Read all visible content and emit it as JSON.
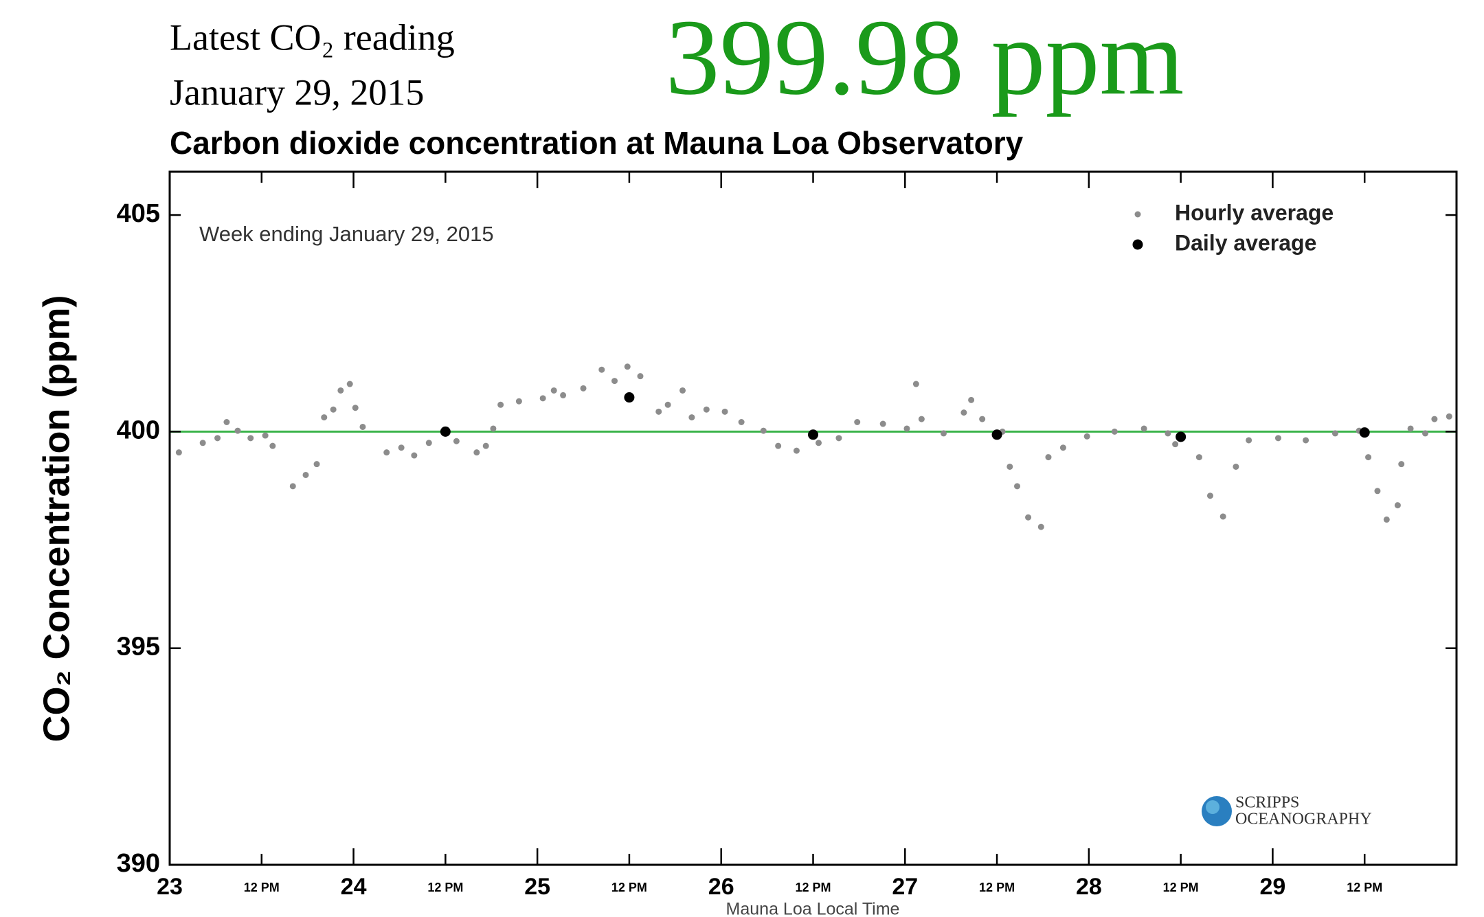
{
  "header": {
    "reading_label": "Latest CO₂ reading",
    "date": "January 29, 2015",
    "reading": "399.98 ppm"
  },
  "chart_data": {
    "type": "scatter",
    "title": "Carbon dioxide concentration at Mauna Loa Observatory",
    "annotation": "Week ending January 29, 2015",
    "x_label": "Mauna Loa Local Time",
    "y_label": "CO₂ Concentration (ppm)",
    "xlim": [
      23,
      30
    ],
    "ylim": [
      390,
      406
    ],
    "xticks": [
      23,
      {
        "value": 23.5,
        "label": "12 PM"
      },
      24,
      {
        "value": 24.5,
        "label": "12 PM"
      },
      25,
      {
        "value": 25.5,
        "label": "12 PM"
      },
      26,
      {
        "value": 26.5,
        "label": "12 PM"
      },
      27,
      {
        "value": 27.5,
        "label": "12 PM"
      },
      28,
      {
        "value": 28.5,
        "label": "12 PM"
      },
      29,
      {
        "value": 29.5,
        "label": "12 PM"
      }
    ],
    "yticks": [
      390,
      395,
      400,
      405
    ],
    "reference_line": {
      "value": 400,
      "color": "#3cb44b"
    },
    "legend": "upper right",
    "series": [
      {
        "name": "Hourly average",
        "color": "#8c8c8c",
        "x": [
          23.05,
          23.18,
          23.26,
          23.31,
          23.37,
          23.44,
          23.52,
          23.56,
          23.67,
          23.74,
          23.8,
          23.84,
          23.89,
          23.93,
          23.98,
          24.01,
          24.05,
          24.18,
          24.26,
          24.33,
          24.41,
          24.56,
          24.67,
          24.72,
          24.76,
          24.8,
          24.9,
          25.03,
          25.09,
          25.14,
          25.25,
          25.35,
          25.42,
          25.49,
          25.56,
          25.66,
          25.71,
          25.79,
          25.84,
          25.92,
          26.02,
          26.11,
          26.23,
          26.31,
          26.41,
          26.53,
          26.64,
          26.74,
          26.88,
          27.01,
          27.06,
          27.09,
          27.21,
          27.32,
          27.36,
          27.42,
          27.53,
          27.57,
          27.61,
          27.67,
          27.74,
          27.78,
          27.86,
          27.99,
          28.14,
          28.3,
          28.43,
          28.47,
          28.6,
          28.66,
          28.73,
          28.8,
          28.87,
          29.03,
          29.18,
          29.34,
          29.47,
          29.52,
          29.57,
          29.62,
          29.68,
          29.7,
          29.75,
          29.83,
          29.88,
          29.96
        ],
        "values": [
          399.52,
          399.74,
          399.85,
          400.22,
          400.02,
          399.85,
          399.91,
          399.67,
          398.74,
          399.0,
          399.25,
          400.33,
          400.51,
          400.95,
          401.1,
          400.55,
          400.11,
          399.52,
          399.63,
          399.45,
          399.74,
          399.78,
          399.52,
          399.67,
          400.07,
          400.62,
          400.7,
          400.77,
          400.95,
          400.84,
          401.0,
          401.43,
          401.17,
          401.5,
          401.28,
          400.46,
          400.62,
          400.95,
          400.33,
          400.51,
          400.46,
          400.22,
          400.02,
          399.67,
          399.56,
          399.74,
          399.85,
          400.22,
          400.18,
          400.07,
          401.1,
          400.29,
          399.96,
          400.44,
          400.73,
          400.29,
          400.0,
          399.19,
          398.74,
          398.02,
          397.8,
          399.41,
          399.63,
          399.89,
          400.0,
          400.07,
          399.96,
          399.71,
          399.41,
          398.52,
          398.04,
          399.19,
          399.8,
          399.85,
          399.8,
          399.96,
          400.02,
          399.41,
          398.63,
          397.97,
          398.3,
          399.25,
          400.07,
          399.96,
          400.29,
          400.35
        ]
      },
      {
        "name": "Daily average",
        "color": "#000000",
        "x": [
          24.5,
          25.5,
          26.5,
          27.5,
          28.5,
          29.5
        ],
        "values": [
          400.0,
          400.79,
          399.93,
          399.93,
          399.88,
          399.98
        ]
      }
    ],
    "logo": [
      "SCRIPPS",
      "OCEANOGRAPHY"
    ]
  }
}
